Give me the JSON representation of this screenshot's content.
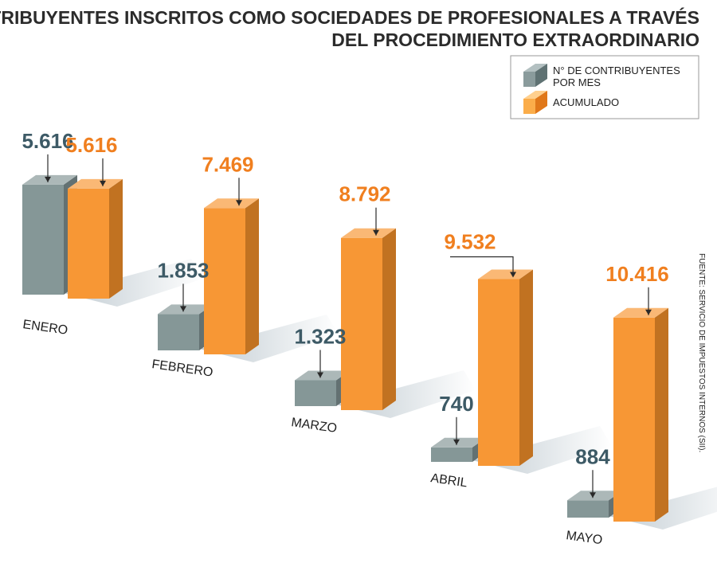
{
  "title": {
    "line1": "CONTRIBUYENTES INSCRITOS COMO SOCIEDADES DE PROFESIONALES A TRAVÉS",
    "line2": "DEL PROCEDIMIENTO EXTRAORDINARIO"
  },
  "legend": {
    "monthly_line1": "N° DE CONTRIBUYENTES",
    "monthly_line2": "POR MES",
    "accumulated": "ACUMULADO"
  },
  "source": "FUENTE: SERVICIO DE IMPUESTOS INTERNOS (SII).",
  "colors": {
    "monthly": "#7f9192",
    "accumulated": "#f7922a",
    "monthly_label": "#3d5a66",
    "accumulated_label": "#f07f1f"
  },
  "chart_data": {
    "type": "bar",
    "categories": [
      "ENERO",
      "FEBRERO",
      "MARZO",
      "ABRIL",
      "MAYO"
    ],
    "series": [
      {
        "name": "N° DE CONTRIBUYENTES POR MES",
        "values": [
          5616,
          1853,
          1323,
          740,
          884
        ],
        "labels": [
          "5.616",
          "1.853",
          "1.323",
          "740",
          "884"
        ]
      },
      {
        "name": "ACUMULADO",
        "values": [
          5616,
          7469,
          8792,
          9532,
          10416
        ],
        "labels": [
          "5.616",
          "7.469",
          "8.792",
          "9.532",
          "10.416"
        ]
      }
    ],
    "title": "CONTRIBUYENTES INSCRITOS COMO SOCIEDADES DE PROFESIONALES A TRAVÉS DEL PROCEDIMIENTO EXTRAORDINARIO",
    "legend_position": "top-right"
  }
}
